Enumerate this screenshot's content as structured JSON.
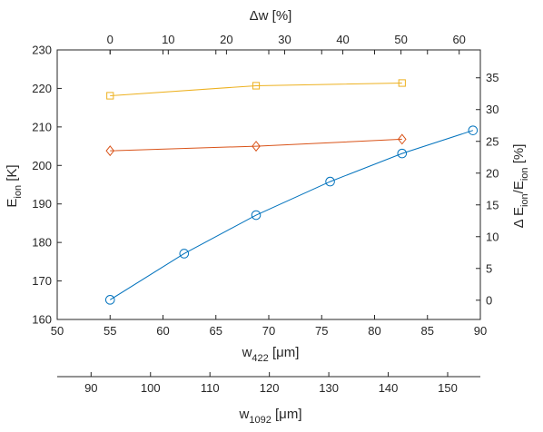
{
  "chart_data": {
    "type": "line",
    "axes": {
      "bottom": {
        "label_main": "w",
        "label_sub": "422",
        "label_unit": " [μm]",
        "range": [
          50,
          90
        ],
        "ticks": [
          50,
          55,
          60,
          65,
          70,
          75,
          80,
          85,
          90
        ]
      },
      "top": {
        "label": "Δw [%]",
        "range": [
          -9.0909,
          63.6364
        ],
        "ticks": [
          0,
          10,
          20,
          30,
          40,
          50,
          60
        ]
      },
      "left": {
        "label_main": "E",
        "label_sub": "ion",
        "label_unit": " [K]",
        "range": [
          160,
          230
        ],
        "ticks": [
          160,
          170,
          180,
          190,
          200,
          210,
          220,
          230
        ]
      },
      "right": {
        "label_parts": [
          "Δ E",
          "ion",
          "/E",
          "ion",
          " [%]"
        ],
        "range": [
          -3.03,
          39.39
        ],
        "ticks": [
          0,
          5,
          10,
          15,
          20,
          25,
          30,
          35
        ]
      },
      "secondary_bottom": {
        "label_main": "w",
        "label_sub": "1092",
        "label_unit": " [μm]",
        "range": [
          84.3,
          155.5
        ],
        "ticks": [
          90,
          100,
          110,
          120,
          130,
          140,
          150
        ]
      }
    },
    "series": [
      {
        "color": "#0072BD",
        "marker": "circle",
        "x": [
          55,
          62,
          68.8,
          75.8,
          82.6,
          89.3
        ],
        "y": [
          165.1,
          177.1,
          187.1,
          195.8,
          203.1,
          209.1
        ]
      },
      {
        "color": "#D95319",
        "marker": "diamond",
        "x": [
          55,
          68.8,
          82.6
        ],
        "y": [
          203.8,
          205.0,
          206.8
        ]
      },
      {
        "color": "#EDB120",
        "marker": "square",
        "x": [
          55,
          68.8,
          82.6
        ],
        "y": [
          218.1,
          220.7,
          221.4
        ]
      }
    ],
    "grid": false,
    "legend": "none"
  }
}
